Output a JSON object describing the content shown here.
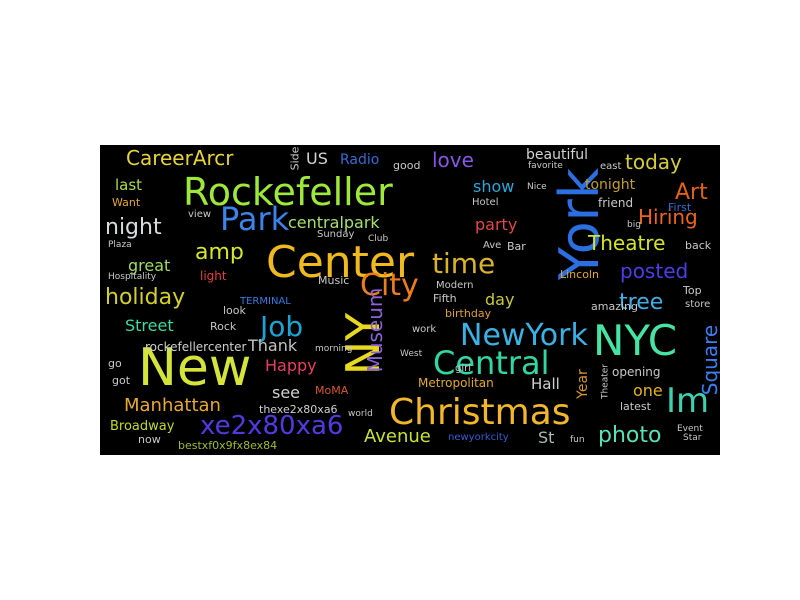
{
  "words": {
    "new": "New",
    "center": "Center",
    "york": "York",
    "nyc": "NYC",
    "christmas": "Christmas",
    "rockefeller": "Rockefeller",
    "ny": "NY",
    "park": "Park",
    "central": "Central",
    "newyork": "NewYork",
    "xe2x80xa6": "xe2x80xa6",
    "job": "Job",
    "time": "time",
    "city": "City",
    "im": "Im",
    "museum": "Museum",
    "careerarcr": "CareerArcr",
    "hiring": "Hiring",
    "theatre": "Theatre",
    "holiday": "holiday",
    "night": "night",
    "amp": "amp",
    "posted": "posted",
    "photo": "photo",
    "tree": "tree",
    "square": "Square",
    "avenue": "Avenue",
    "manhattan": "Manhattan",
    "love": "love",
    "today": "today",
    "art": "Art",
    "centralpark": "centralpark",
    "show": "show",
    "party": "party",
    "great": "great",
    "street": "Street",
    "day": "day",
    "hall": "Hall",
    "metropolitan": "Metropolitan",
    "year": "Year",
    "see": "see",
    "happy": "Happy",
    "thank": "Thank",
    "last": "last",
    "beautiful": "beautiful",
    "tonight": "tonight",
    "one": "one",
    "st": "St",
    "broadway": "Broadway",
    "rockefellercenter": "rockefellercenter",
    "us": "US",
    "radio": "Radio",
    "bestxf0": "bestxf0x9fx8ex84",
    "thexe2": "thexe2x80xa6",
    "newyorkcity": "newyorkcity",
    "rock": "Rock",
    "terminal": "TERMINAL",
    "moma": "MoMA",
    "light": "light",
    "fifth": "Fifth",
    "modern": "Modern",
    "lincoln": "Lincoln",
    "birthday": "birthday",
    "girl": "girl",
    "work": "work",
    "latest": "latest",
    "opening": "opening",
    "amazing": "amazing",
    "friend": "friend",
    "hotel": "Hotel",
    "good": "good",
    "music": "Music",
    "sunday": "Sunday",
    "look": "look",
    "view": "view",
    "want": "Want",
    "go": "go",
    "got": "got",
    "now": "now",
    "bar": "Bar",
    "ave": "Ave",
    "back": "back",
    "top": "Top",
    "store": "store",
    "first": "First",
    "favorite": "favorite",
    "east": "east",
    "side": "Side",
    "theater": "Theater",
    "event": "Event",
    "star": "Star",
    "fun": "fun",
    "hospitality": "Hospitality",
    "plaza": "Plaza",
    "west": "West",
    "morning": "morning",
    "club": "Club",
    "nice": "Nice",
    "big": "big",
    "world": "world"
  },
  "colors": {
    "background": "#000000",
    "page": "#ffffff"
  }
}
